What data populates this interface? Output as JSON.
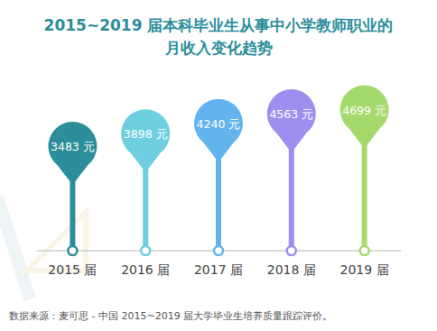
{
  "chart_data": {
    "type": "lollipop",
    "title": "2015~2019 届本科毕业生从事中小学教师职业的\n月收入变化趋势",
    "categories": [
      "2015 届",
      "2016 届",
      "2017 届",
      "2018 届",
      "2019 届"
    ],
    "values": [
      3483,
      3898,
      4240,
      4563,
      4699
    ],
    "value_labels": [
      "3483 元",
      "3898 元",
      "4240 元",
      "4563 元",
      "4699 元"
    ],
    "colors": [
      "#2b8e9a",
      "#6dcfe0",
      "#62b4ee",
      "#9c8ff0",
      "#a6d96c"
    ],
    "ylim": [
      0,
      5500
    ],
    "data_labels": true,
    "tick_labels": "x",
    "source": "数据来源：麦可思 - 中国 2015~2019 届大学毕业生培养质量跟踪评价。"
  }
}
